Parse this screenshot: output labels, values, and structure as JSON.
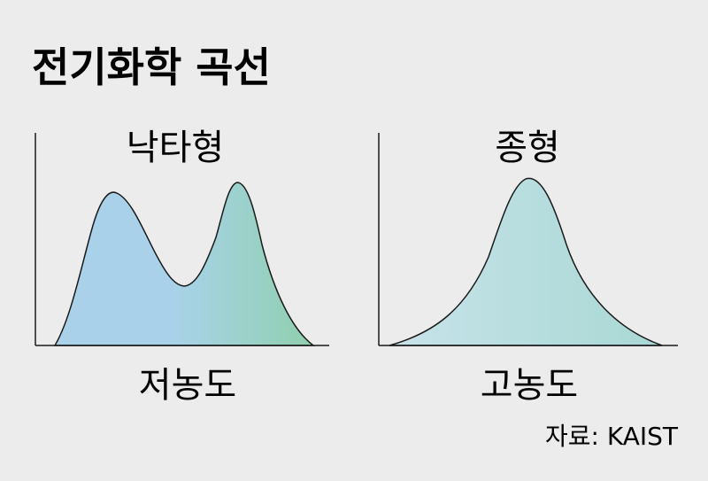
{
  "title": "전기화학 곡선",
  "source": "자료: KAIST",
  "chart_data": [
    {
      "type": "area",
      "title": "낙타형",
      "xlabel": "저농도",
      "ylabel": "",
      "shape": "bimodal",
      "peaks": 2,
      "fill_colors": [
        "#a9d2ea",
        "#8fd0ae"
      ],
      "axes_ticks": false,
      "grid": false
    },
    {
      "type": "area",
      "title": "종형",
      "xlabel": "고농도",
      "ylabel": "",
      "shape": "unimodal",
      "peaks": 1,
      "fill_colors": [
        "#c7e3ea",
        "#a9d8d3"
      ],
      "axes_ticks": false,
      "grid": false
    }
  ]
}
